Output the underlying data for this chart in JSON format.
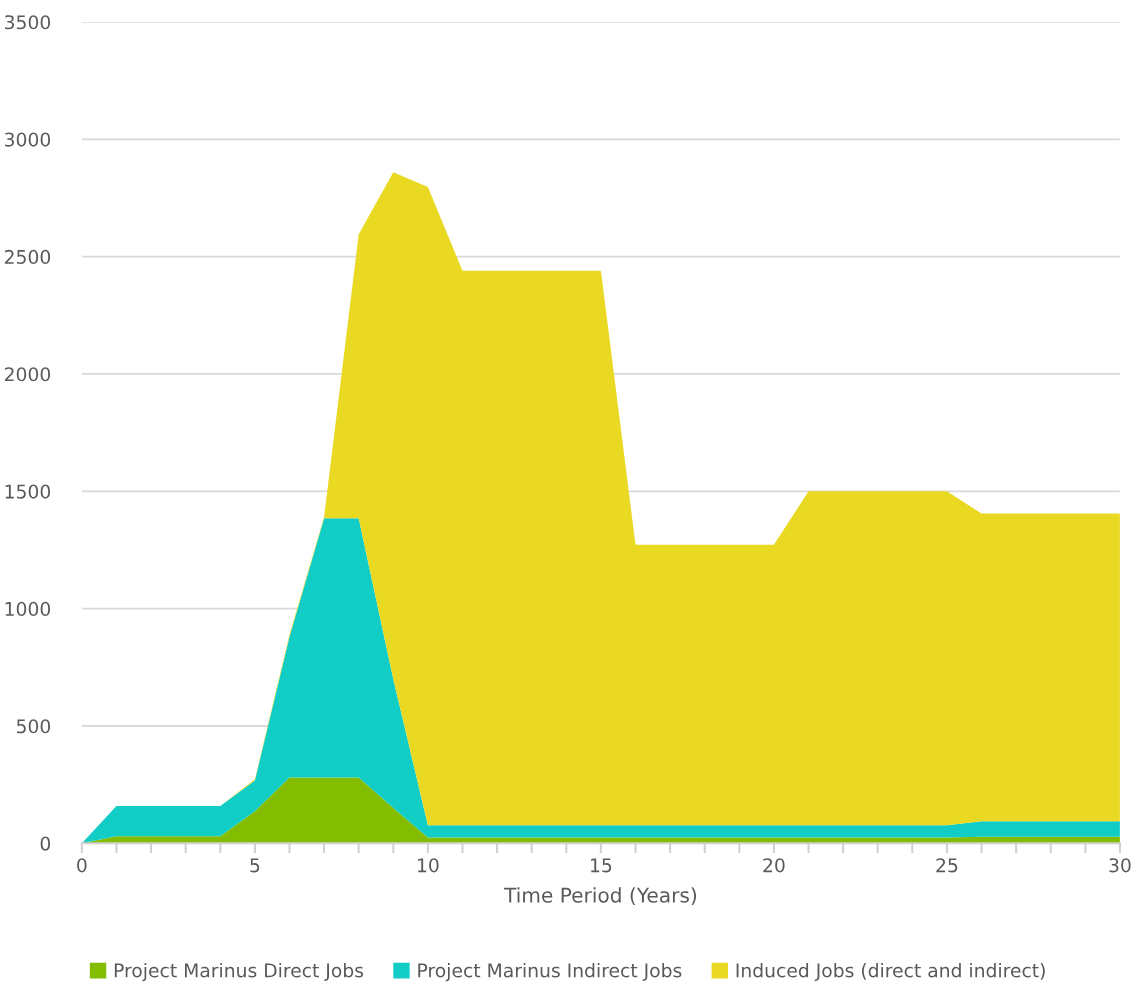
{
  "chart_data": {
    "type": "area",
    "stacked": true,
    "xlabel": "Time Period (Years)",
    "x": [
      0,
      1,
      2,
      3,
      4,
      5,
      6,
      7,
      8,
      9,
      10,
      11,
      12,
      13,
      14,
      15,
      16,
      17,
      18,
      19,
      20,
      21,
      22,
      23,
      24,
      25,
      26,
      27,
      28,
      29,
      30
    ],
    "series": [
      {
        "name": "Project Marinus Direct Jobs",
        "color": "#84bd00",
        "values": [
          0,
          30,
          30,
          30,
          30,
          137,
          280,
          280,
          280,
          150,
          25,
          25,
          25,
          25,
          25,
          25,
          25,
          25,
          25,
          25,
          25,
          25,
          25,
          25,
          25,
          25,
          28,
          28,
          28,
          28,
          28
        ]
      },
      {
        "name": "Project Marinus Indirect Jobs",
        "color": "#12cdc6",
        "values": [
          0,
          129,
          129,
          129,
          129,
          131,
          600,
          1105,
          1105,
          550,
          52,
          52,
          52,
          52,
          52,
          52,
          52,
          52,
          52,
          52,
          52,
          52,
          52,
          52,
          52,
          52,
          66,
          66,
          66,
          66,
          66
        ]
      },
      {
        "name": "Induced Jobs (direct and indirect)",
        "color": "#e9d923",
        "values": [
          0,
          0,
          0,
          0,
          0,
          5,
          10,
          5,
          1210,
          2160,
          2720,
          2363,
          2363,
          2363,
          2363,
          2363,
          1195,
          1195,
          1195,
          1195,
          1195,
          1423,
          1423,
          1423,
          1423,
          1423,
          1311,
          1311,
          1311,
          1311,
          1311
        ]
      }
    ],
    "xlim": [
      0,
      30
    ],
    "xticks": [
      0,
      {
        "value": 1,
        "label": null
      },
      {
        "value": 2,
        "label": null
      },
      {
        "value": 3,
        "label": null
      },
      {
        "value": 4,
        "label": null
      },
      5,
      {
        "value": 6,
        "label": null
      },
      {
        "value": 7,
        "label": null
      },
      {
        "value": 8,
        "label": null
      },
      {
        "value": 9,
        "label": null
      },
      10,
      {
        "value": 11,
        "label": null
      },
      {
        "value": 12,
        "label": null
      },
      {
        "value": 13,
        "label": null
      },
      {
        "value": 14,
        "label": null
      },
      15,
      {
        "value": 16,
        "label": null
      },
      {
        "value": 17,
        "label": null
      },
      {
        "value": 18,
        "label": null
      },
      {
        "value": 19,
        "label": null
      },
      20,
      {
        "value": 21,
        "label": null
      },
      {
        "value": 22,
        "label": null
      },
      {
        "value": 23,
        "label": null
      },
      {
        "value": 24,
        "label": null
      },
      25,
      {
        "value": 26,
        "label": null
      },
      {
        "value": 27,
        "label": null
      },
      {
        "value": 28,
        "label": null
      },
      {
        "value": 29,
        "label": null
      },
      30
    ],
    "ylim": [
      0,
      3500
    ],
    "yticks": [
      0,
      500,
      1000,
      1500,
      2000,
      2500,
      3000,
      3500
    ],
    "grid": "y",
    "legend": "bottom"
  }
}
